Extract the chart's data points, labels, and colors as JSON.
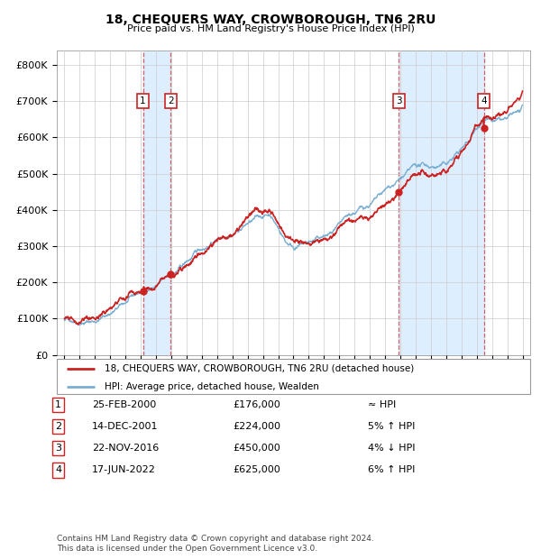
{
  "title": "18, CHEQUERS WAY, CROWBOROUGH, TN6 2RU",
  "subtitle": "Price paid vs. HM Land Registry's House Price Index (HPI)",
  "legend_label1": "18, CHEQUERS WAY, CROWBOROUGH, TN6 2RU (detached house)",
  "legend_label2": "HPI: Average price, detached house, Wealden",
  "footer": "Contains HM Land Registry data © Crown copyright and database right 2024.\nThis data is licensed under the Open Government Licence v3.0.",
  "hpi_color": "#7aafd4",
  "price_color": "#cc2222",
  "marker_color": "#cc2222",
  "background_color": "#ffffff",
  "grid_color": "#cccccc",
  "shade_color": "#ddeeff",
  "purchases": [
    {
      "num": 1,
      "date_label": "25-FEB-2000",
      "date_x": 2000.14,
      "price": 176000,
      "hpi_relation": "≈ HPI"
    },
    {
      "num": 2,
      "date_label": "14-DEC-2001",
      "date_x": 2001.96,
      "price": 224000,
      "hpi_relation": "5% ↑ HPI"
    },
    {
      "num": 3,
      "date_label": "22-NOV-2016",
      "date_x": 2016.9,
      "price": 450000,
      "hpi_relation": "4% ↓ HPI"
    },
    {
      "num": 4,
      "date_label": "17-JUN-2022",
      "date_x": 2022.46,
      "price": 625000,
      "hpi_relation": "6% ↑ HPI"
    }
  ],
  "ylim": [
    0,
    840000
  ],
  "xlim": [
    1994.5,
    2025.5
  ],
  "yticks": [
    0,
    100000,
    200000,
    300000,
    400000,
    500000,
    600000,
    700000,
    800000
  ],
  "ytick_labels": [
    "£0",
    "£100K",
    "£200K",
    "£300K",
    "£400K",
    "£500K",
    "£600K",
    "£700K",
    "£800K"
  ],
  "xticks": [
    1995,
    1996,
    1997,
    1998,
    1999,
    2000,
    2001,
    2002,
    2003,
    2004,
    2005,
    2006,
    2007,
    2008,
    2009,
    2010,
    2011,
    2012,
    2013,
    2014,
    2015,
    2016,
    2017,
    2018,
    2019,
    2020,
    2021,
    2022,
    2023,
    2024,
    2025
  ]
}
